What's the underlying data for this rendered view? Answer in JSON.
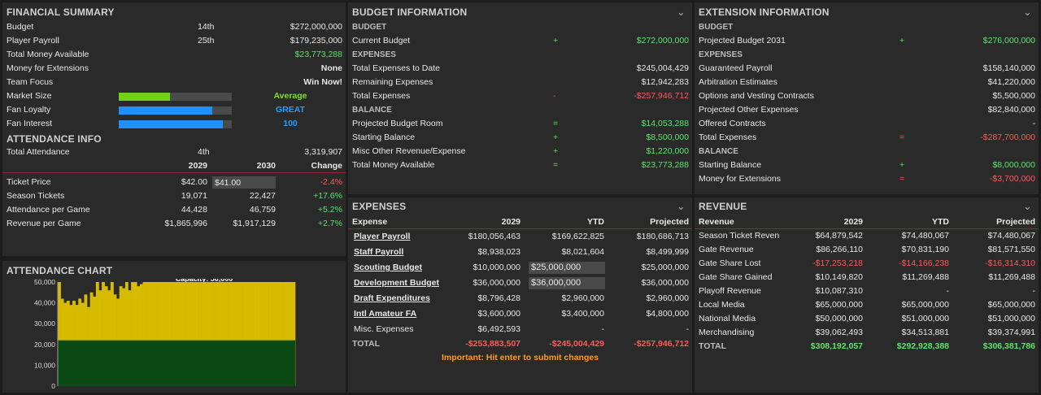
{
  "colors": {
    "green": "#5ee36b",
    "red": "#ff5a5a",
    "accent": "#8c2a3c"
  },
  "fin": {
    "title": "FINANCIAL SUMMARY",
    "rows": [
      {
        "label": "Budget",
        "rank": "14th",
        "value": "$272,000,000"
      },
      {
        "label": "Player Payroll",
        "rank": "25th",
        "value": "$179,235,000"
      },
      {
        "label": "Total Money Available",
        "rank": "",
        "value": "$23,773,288"
      },
      {
        "label": "Money for Extensions",
        "rank": "",
        "value": "None"
      },
      {
        "label": "Team Focus",
        "rank": "",
        "value": "Win Now!"
      }
    ],
    "meters": [
      {
        "label": "Market Size",
        "text": "Average",
        "level": 0.45
      },
      {
        "label": "Fan Loyalty",
        "text": "GREAT",
        "level": 0.83
      },
      {
        "label": "Fan Interest",
        "text": "100",
        "level": 0.92
      }
    ]
  },
  "att": {
    "title": "ATTENDANCE INFO",
    "total_label": "Total Attendance",
    "total_rank": "4th",
    "total_value": "3,319,907",
    "cols": [
      "2029",
      "2030",
      "Change"
    ],
    "rows": [
      {
        "label": "Ticket Price",
        "a": "$42.00",
        "b": "$41.00",
        "c": "-2.4%"
      },
      {
        "label": "Season Tickets",
        "a": "19,071",
        "b": "22,427",
        "c": "+17.6%"
      },
      {
        "label": "Attendance per Game",
        "a": "44,428",
        "b": "46,759",
        "c": "+5.2%"
      },
      {
        "label": "Revenue per Game",
        "a": "$1,865,996",
        "b": "$1,917,129",
        "c": "+2.7%"
      }
    ]
  },
  "chart_data": {
    "type": "bar",
    "title": "ATTENDANCE CHART",
    "annotation": "Capacity: 50,000",
    "ylim": [
      0,
      50000
    ],
    "yticks": [
      "50,000",
      "40,000",
      "30,000",
      "20,000",
      "10,000",
      "0"
    ],
    "baseline": 22000,
    "values": [
      50000,
      42000,
      40000,
      41000,
      39000,
      41000,
      39000,
      42000,
      40000,
      44000,
      38000,
      45000,
      43000,
      50000,
      46000,
      50000,
      48000,
      46000,
      50000,
      44000,
      42000,
      48000,
      47000,
      50000,
      46000,
      50000,
      50000,
      48000,
      49000,
      50000,
      50000,
      50000,
      50000,
      50000,
      50000,
      50000,
      50000,
      50000,
      50000,
      50000,
      50000,
      50000,
      50000,
      50000,
      50000,
      50000,
      50000,
      50000,
      50000,
      50000,
      50000,
      50000,
      50000,
      50000,
      50000,
      50000,
      50000,
      50000,
      50000,
      50000,
      50000,
      50000,
      50000,
      50000,
      50000,
      50000,
      50000,
      50000,
      50000,
      50000,
      50000,
      50000,
      50000,
      50000,
      50000,
      50000,
      50000,
      50000,
      50000,
      50000,
      50000
    ]
  },
  "budget": {
    "title": "BUDGET INFORMATION",
    "sections": [
      {
        "name": "BUDGET",
        "rows": [
          {
            "label": "Current Budget",
            "op": "+",
            "value": "$272,000,000",
            "cls": "green"
          }
        ]
      },
      {
        "name": "EXPENSES",
        "rows": [
          {
            "label": "Total Expenses to Date",
            "op": "",
            "value": "$245,004,429",
            "cls": ""
          },
          {
            "label": "Remaining Expenses",
            "op": "",
            "value": "$12,942,283",
            "cls": ""
          },
          {
            "label": "Total Expenses",
            "op": "-",
            "value": "-$257,946,712",
            "cls": "red"
          }
        ]
      },
      {
        "name": "BALANCE",
        "rows": [
          {
            "label": "Projected Budget Room",
            "op": "=",
            "value": "$14,053,288",
            "cls": "green"
          },
          {
            "label": "Starting Balance",
            "op": "+",
            "value": "$8,500,000",
            "cls": "green"
          },
          {
            "label": "Misc Other Revenue/Expense",
            "op": "+",
            "value": "$1,220,000",
            "cls": "green"
          },
          {
            "label": "Total Money Available",
            "op": "=",
            "value": "$23,773,288",
            "cls": "green"
          }
        ]
      }
    ]
  },
  "ext": {
    "title": "EXTENSION INFORMATION",
    "sections": [
      {
        "name": "BUDGET",
        "rows": [
          {
            "label": "Projected Budget 2031",
            "op": "+",
            "value": "$276,000,000",
            "cls": "green"
          }
        ]
      },
      {
        "name": "EXPENSES",
        "rows": [
          {
            "label": "Guaranteed Payroll",
            "op": "",
            "value": "$158,140,000",
            "cls": ""
          },
          {
            "label": "Arbitration Estimates",
            "op": "",
            "value": "$41,220,000",
            "cls": ""
          },
          {
            "label": "Options and Vesting Contracts",
            "op": "",
            "value": "$5,500,000",
            "cls": ""
          },
          {
            "label": "Projected Other Expenses",
            "op": "",
            "value": "$82,840,000",
            "cls": ""
          },
          {
            "label": "Offered Contracts",
            "op": "",
            "value": "-",
            "cls": ""
          },
          {
            "label": "Total Expenses",
            "op": "=",
            "value": "-$287,700,000",
            "cls": "red"
          }
        ]
      },
      {
        "name": "BALANCE",
        "rows": [
          {
            "label": "Starting Balance",
            "op": "+",
            "value": "$8,000,000",
            "cls": "green"
          },
          {
            "label": "Money for Extensions",
            "op": "=",
            "value": "-$3,700,000",
            "cls": "red"
          }
        ]
      }
    ]
  },
  "exp": {
    "title": "EXPENSES",
    "cols": [
      "Expense",
      "2029",
      "YTD",
      "Projected"
    ],
    "rows": [
      {
        "label": "Player Payroll",
        "a": "$180,056,463",
        "b": "$169,622,825",
        "c": "$180,686,713",
        "link": true
      },
      {
        "label": "Staff Payroll",
        "a": "$8,938,023",
        "b": "$8,021,604",
        "c": "$8,499,999",
        "link": true
      },
      {
        "label": "Scouting Budget",
        "a": "$10,000,000",
        "b": "$25,000,000",
        "c": "$25,000,000",
        "link": true,
        "input": true
      },
      {
        "label": "Development Budget",
        "a": "$36,000,000",
        "b": "$36,000,000",
        "c": "$36,000,000",
        "link": true,
        "input": true
      },
      {
        "label": "Draft Expenditures",
        "a": "$8,796,428",
        "b": "$2,960,000",
        "c": "$2,960,000",
        "link": true
      },
      {
        "label": "Intl Amateur FA",
        "a": "$3,600,000",
        "b": "$3,400,000",
        "c": "$4,800,000",
        "link": true
      },
      {
        "label": "Misc. Expenses",
        "a": "$6,492,593",
        "b": "-",
        "c": "-",
        "link": false
      }
    ],
    "total": {
      "label": "TOTAL",
      "a": "-$253,883,507",
      "b": "-$245,004,429",
      "c": "-$257,946,712"
    },
    "note": "Important: Hit enter to submit changes"
  },
  "rev": {
    "title": "REVENUE",
    "cols": [
      "Revenue",
      "2029",
      "YTD",
      "Projected"
    ],
    "rows": [
      {
        "label": "Season Ticket Revenue",
        "a": "$64,879,542",
        "b": "$74,480,067",
        "c": "$74,480,067",
        "cls": ""
      },
      {
        "label": "Gate Revenue",
        "a": "$86,266,110",
        "b": "$70,831,190",
        "c": "$81,571,550",
        "cls": ""
      },
      {
        "label": "Gate Share Lost",
        "a": "-$17,253,218",
        "b": "-$14,166,238",
        "c": "-$16,314,310",
        "cls": "red"
      },
      {
        "label": "Gate Share Gained",
        "a": "$10,149,820",
        "b": "$11,269,488",
        "c": "$11,269,488",
        "cls": ""
      },
      {
        "label": "Playoff Revenue",
        "a": "$10,087,310",
        "b": "-",
        "c": "-",
        "cls": ""
      },
      {
        "label": "Local Media",
        "a": "$65,000,000",
        "b": "$65,000,000",
        "c": "$65,000,000",
        "cls": ""
      },
      {
        "label": "National Media",
        "a": "$50,000,000",
        "b": "$51,000,000",
        "c": "$51,000,000",
        "cls": ""
      },
      {
        "label": "Merchandising",
        "a": "$39,062,493",
        "b": "$34,513,881",
        "c": "$39,374,991",
        "cls": ""
      }
    ],
    "total": {
      "label": "TOTAL",
      "a": "$308,192,057",
      "b": "$292,928,388",
      "c": "$306,381,786"
    }
  }
}
